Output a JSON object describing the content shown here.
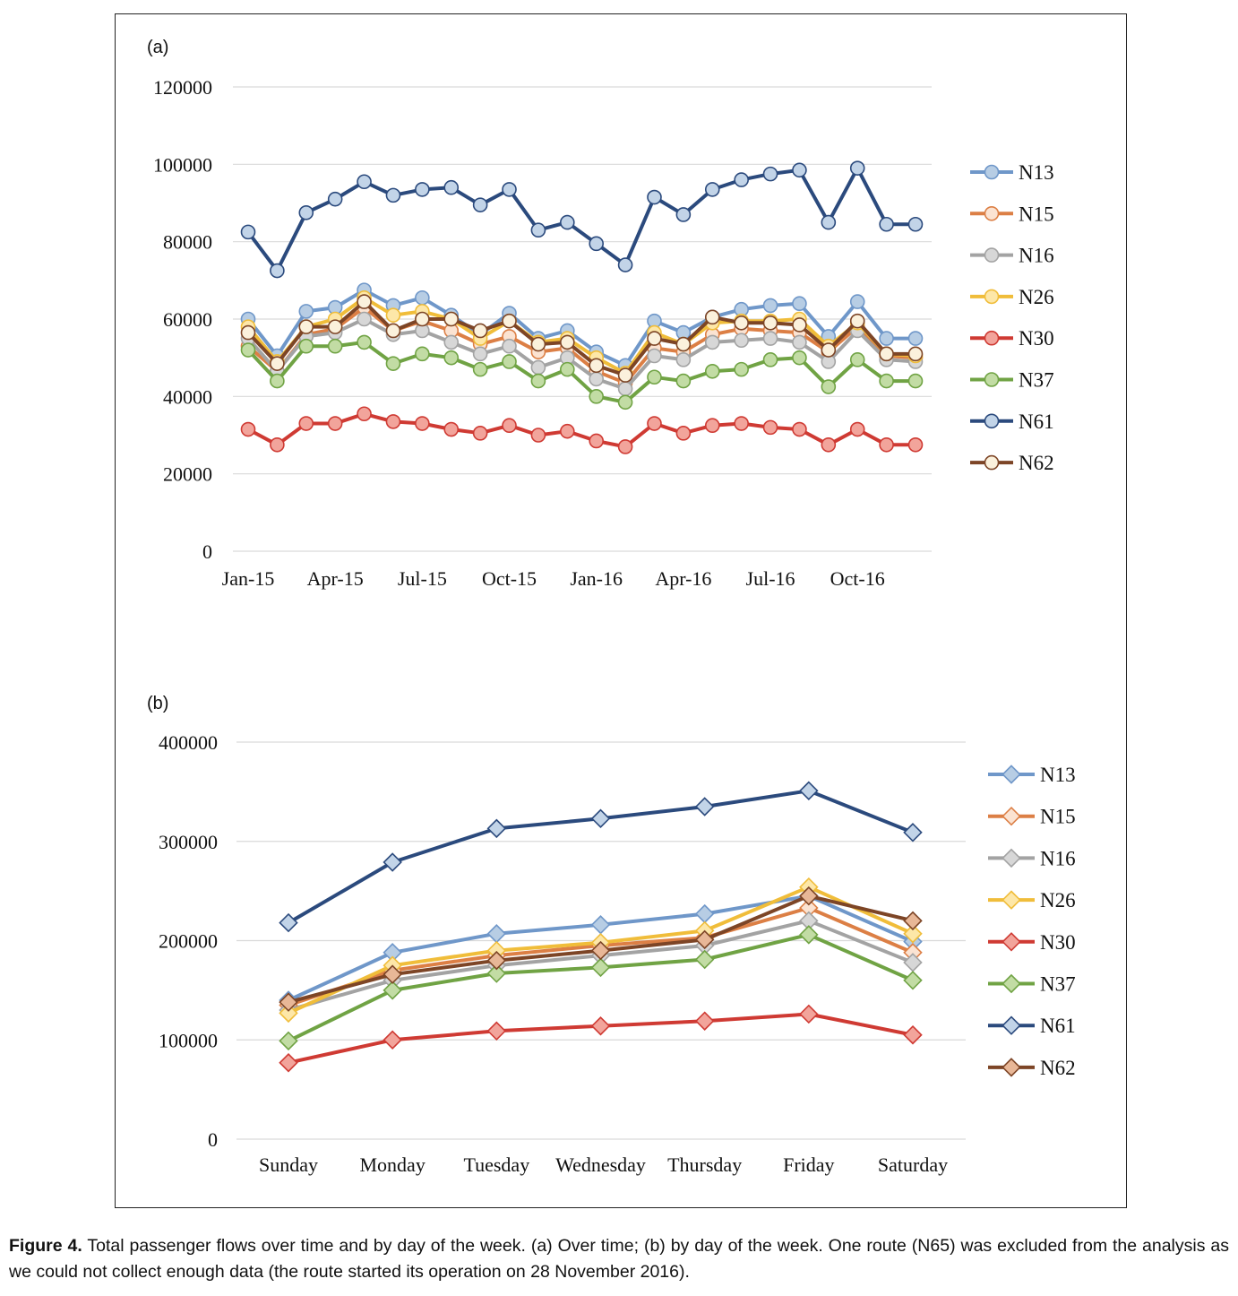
{
  "figure": {
    "caption_label": "Figure 4.",
    "caption_text": "Total passenger flows over time and by day of the week. (a) Over time; (b) by day of the week. One route (N65) was excluded from the analysis as we could not collect enough data (the route started its operation on 28 November 2016)."
  },
  "chart_data": [
    {
      "panel_label": "(a)",
      "type": "line",
      "marker": "circle",
      "x": [
        "Jan-15",
        "Feb-15",
        "Mar-15",
        "Apr-15",
        "May-15",
        "Jun-15",
        "Jul-15",
        "Aug-15",
        "Sep-15",
        "Oct-15",
        "Nov-15",
        "Dec-15",
        "Jan-16",
        "Feb-16",
        "Mar-16",
        "Apr-16",
        "May-16",
        "Jun-16",
        "Jul-16",
        "Aug-16",
        "Sep-16",
        "Oct-16",
        "Nov-16",
        "Dec-16"
      ],
      "x_tick_labels": [
        {
          "index": 0,
          "label": "Jan-15"
        },
        {
          "index": 3,
          "label": "Apr-15"
        },
        {
          "index": 6,
          "label": "Jul-15"
        },
        {
          "index": 9,
          "label": "Oct-15"
        },
        {
          "index": 12,
          "label": "Jan-16"
        },
        {
          "index": 15,
          "label": "Apr-16"
        },
        {
          "index": 18,
          "label": "Jul-16"
        },
        {
          "index": 21,
          "label": "Oct-16"
        }
      ],
      "ylim": [
        0,
        120000
      ],
      "yticks": [
        "0",
        "20000",
        "40000",
        "60000",
        "80000",
        "100000",
        "120000"
      ],
      "ytick_values": [
        0,
        20000,
        40000,
        60000,
        80000,
        100000,
        120000
      ],
      "grid": true,
      "legend_position": "right",
      "series": [
        {
          "name": "N13",
          "color": "#6f97c9",
          "fill": "#b7cde4",
          "values": [
            60000,
            50500,
            62000,
            63000,
            67500,
            63500,
            65500,
            61000,
            56000,
            61500,
            55000,
            57000,
            51500,
            48000,
            59500,
            56500,
            60500,
            62500,
            63500,
            64000,
            55500,
            64500,
            55000,
            55000
          ]
        },
        {
          "name": "N15",
          "color": "#dc7f45",
          "fill": "#fbe3d2",
          "values": [
            53000,
            46500,
            56000,
            57500,
            63000,
            57000,
            59500,
            57000,
            53500,
            55500,
            51500,
            52500,
            46500,
            43500,
            52500,
            51500,
            56000,
            57500,
            57000,
            56500,
            51500,
            58000,
            50500,
            50000
          ]
        },
        {
          "name": "N16",
          "color": "#a3a3a3",
          "fill": "#d7d7d7",
          "values": [
            55000,
            46500,
            55500,
            56500,
            60000,
            56000,
            57000,
            54000,
            51000,
            53000,
            47500,
            50000,
            44500,
            42000,
            50500,
            49500,
            54000,
            54500,
            55000,
            54000,
            49000,
            57000,
            49500,
            49000
          ]
        },
        {
          "name": "N26",
          "color": "#f0bd3a",
          "fill": "#fde7a8",
          "values": [
            58000,
            49000,
            58000,
            60000,
            65500,
            61000,
            62000,
            60000,
            55000,
            59500,
            54000,
            55000,
            50000,
            46000,
            56500,
            53500,
            59000,
            59500,
            59500,
            60000,
            53000,
            59000,
            51000,
            50500
          ]
        },
        {
          "name": "N30",
          "color": "#cf3a33",
          "fill": "#f2a49b",
          "values": [
            31500,
            27500,
            33000,
            33000,
            35500,
            33500,
            33000,
            31500,
            30500,
            32500,
            30000,
            31000,
            28500,
            27000,
            33000,
            30500,
            32500,
            33000,
            32000,
            31500,
            27500,
            31500,
            27500,
            27500
          ]
        },
        {
          "name": "N37",
          "color": "#70a344",
          "fill": "#c2dca4",
          "values": [
            52000,
            44000,
            53000,
            53000,
            54000,
            48500,
            51000,
            50000,
            47000,
            49000,
            44000,
            47000,
            40000,
            38500,
            45000,
            44000,
            46500,
            47000,
            49500,
            50000,
            42500,
            49500,
            44000,
            44000
          ]
        },
        {
          "name": "N61",
          "color": "#2b4a7d",
          "fill": "#c2d4e8",
          "values": [
            82500,
            72500,
            87500,
            91000,
            95500,
            92000,
            93500,
            94000,
            89500,
            93500,
            83000,
            85000,
            79500,
            74000,
            91500,
            87000,
            93500,
            96000,
            97500,
            98500,
            85000,
            99000,
            84500,
            84500
          ]
        },
        {
          "name": "N62",
          "color": "#7d4526",
          "fill": "#fbf1dc",
          "values": [
            56500,
            48500,
            58000,
            58000,
            64500,
            57000,
            60000,
            60000,
            57000,
            59500,
            53500,
            54000,
            48000,
            45500,
            55000,
            53500,
            60500,
            59000,
            59000,
            58500,
            52000,
            59500,
            51000,
            51000
          ]
        }
      ]
    },
    {
      "panel_label": "(b)",
      "type": "line",
      "marker": "diamond",
      "categories": [
        "Sunday",
        "Monday",
        "Tuesday",
        "Wednesday",
        "Thursday",
        "Friday",
        "Saturday"
      ],
      "ylim": [
        0,
        400000
      ],
      "yticks": [
        "0",
        "100000",
        "200000",
        "300000",
        "400000"
      ],
      "ytick_values": [
        0,
        100000,
        200000,
        300000,
        400000
      ],
      "grid": true,
      "legend_position": "right",
      "series": [
        {
          "name": "N13",
          "color": "#6f97c9",
          "fill": "#b7cde4",
          "values": [
            140000,
            188000,
            207000,
            216000,
            227000,
            245000,
            199000
          ]
        },
        {
          "name": "N15",
          "color": "#dc7f45",
          "fill": "#fbe3d2",
          "values": [
            135000,
            170000,
            185000,
            195000,
            203000,
            233000,
            188000
          ]
        },
        {
          "name": "N16",
          "color": "#a3a3a3",
          "fill": "#d7d7d7",
          "values": [
            130000,
            160000,
            175000,
            185000,
            195000,
            220000,
            178000
          ]
        },
        {
          "name": "N26",
          "color": "#f0bd3a",
          "fill": "#fde7a8",
          "values": [
            127000,
            175000,
            190000,
            198000,
            210000,
            254000,
            207000
          ]
        },
        {
          "name": "N30",
          "color": "#cf3a33",
          "fill": "#f2a49b",
          "values": [
            77000,
            100000,
            109000,
            114000,
            119000,
            126000,
            105000
          ]
        },
        {
          "name": "N37",
          "color": "#70a344",
          "fill": "#c2dca4",
          "values": [
            99000,
            150000,
            167000,
            173000,
            181000,
            206000,
            160000
          ]
        },
        {
          "name": "N61",
          "color": "#2b4a7d",
          "fill": "#c2d4e8",
          "values": [
            218000,
            279000,
            313000,
            323000,
            335000,
            351000,
            309000
          ]
        },
        {
          "name": "N62",
          "color": "#7d4526",
          "fill": "#e8b797",
          "values": [
            138000,
            166000,
            180000,
            190000,
            201000,
            245000,
            220000
          ]
        }
      ]
    }
  ]
}
